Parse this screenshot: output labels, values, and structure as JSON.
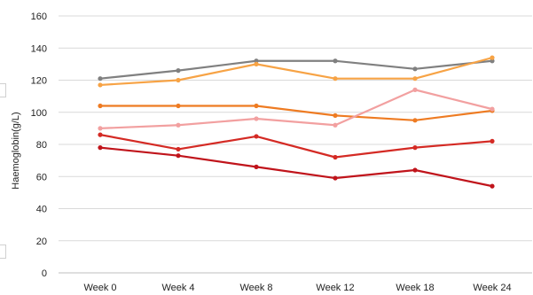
{
  "chart_data": {
    "type": "line",
    "categories": [
      "Week 0",
      "Week 4",
      "Week 8",
      "Week 12",
      "Week 18",
      "Week 24"
    ],
    "ylabel": "Haemoglobin(g/L)",
    "ylim": [
      0,
      160
    ],
    "yticks": [
      0,
      20,
      40,
      60,
      80,
      100,
      120,
      140,
      160
    ],
    "grid": true,
    "legend": "none",
    "series": [
      {
        "color": "#808080",
        "values": [
          121,
          126,
          132,
          132,
          127,
          132
        ]
      },
      {
        "color": "#F7A345",
        "values": [
          117,
          120,
          130,
          121,
          121,
          134
        ]
      },
      {
        "color": "#EE7B22",
        "values": [
          104,
          104,
          104,
          98,
          95,
          101
        ]
      },
      {
        "color": "#F2A0A0",
        "values": [
          90,
          92,
          96,
          92,
          114,
          102
        ]
      },
      {
        "color": "#D42A24",
        "values": [
          86,
          77,
          85,
          72,
          78,
          82
        ]
      },
      {
        "color": "#C0141B",
        "values": [
          78,
          73,
          66,
          59,
          64,
          54
        ]
      }
    ]
  }
}
